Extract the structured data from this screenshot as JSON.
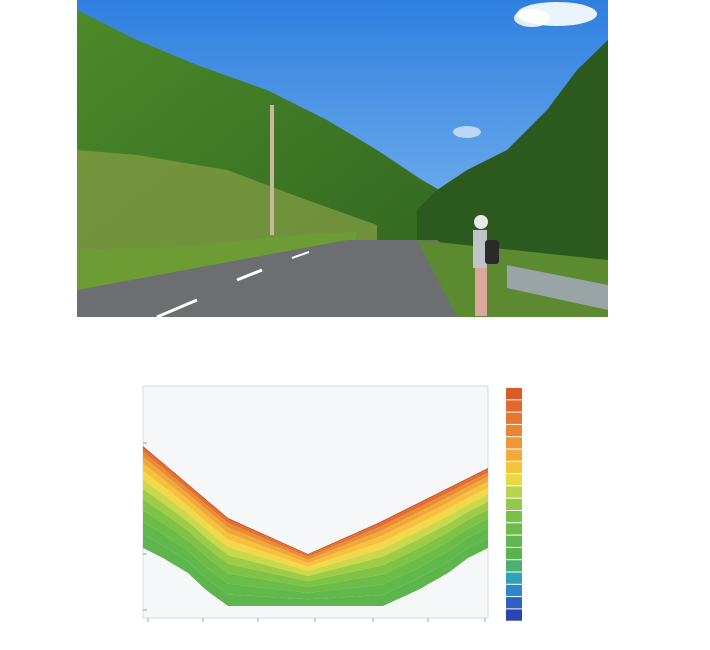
{
  "photo": {
    "sky_color": "#3f8be0",
    "road_color": "#6d6e72",
    "vegetation_color": "#3f7a2a"
  },
  "section": {
    "colors": [
      "#d4532a",
      "#e0702e",
      "#ea8c34",
      "#f2a73a",
      "#f6c13c",
      "#f2d84a",
      "#c9d94a",
      "#9fcc47",
      "#7fc346",
      "#6cbd48",
      "#62b94b",
      "#5eb54e"
    ],
    "legend_colors": [
      "#dc5a28",
      "#e0682a",
      "#e5772e",
      "#ea8632",
      "#ef9636",
      "#f3aa3a",
      "#f3c43d",
      "#e8d844",
      "#b9d44a",
      "#94c84a",
      "#7bc04a",
      "#6cbb4b",
      "#62b64d",
      "#5ab250",
      "#4fae72",
      "#34a2b6",
      "#2f86c8",
      "#2c63c0",
      "#2a44b0"
    ]
  }
}
